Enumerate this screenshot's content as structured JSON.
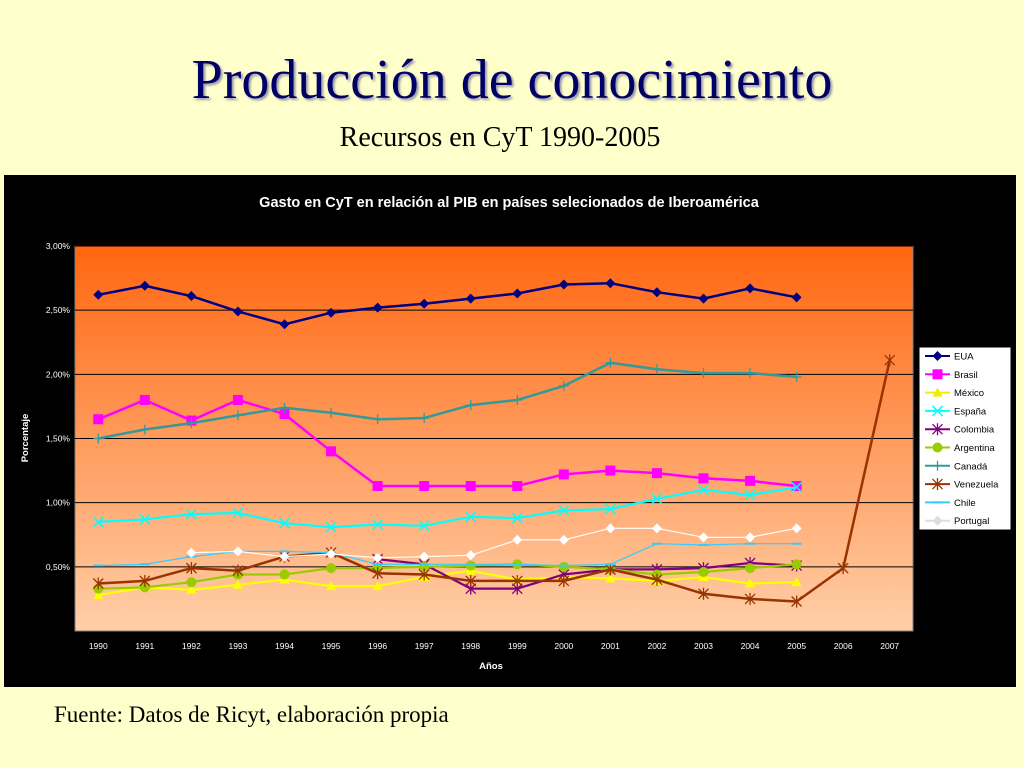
{
  "slide": {
    "title": "Producción de conocimiento",
    "subtitle": "Recursos en CyT 1990-2005",
    "source": "Fuente: Datos de Ricyt, elaboración propia"
  },
  "chart_data": {
    "type": "line",
    "title": "Gasto en CyT en relación al PIB en países selecionados de Iberoamérica",
    "xlabel": "Años",
    "ylabel": "Porcentaje",
    "ylim": [
      0,
      3.0
    ],
    "yticks": [
      0.5,
      1.0,
      1.5,
      2.0,
      2.5,
      3.0
    ],
    "ytick_labels": [
      "0,50%",
      "1,00%",
      "1,50%",
      "2,00%",
      "2,50%",
      "3,00%"
    ],
    "categories": [
      "1990",
      "1991",
      "1992",
      "1993",
      "1994",
      "1995",
      "1996",
      "1997",
      "1998",
      "1999",
      "2000",
      "2001",
      "2002",
      "2003",
      "2004",
      "2005",
      "2006",
      "2007"
    ],
    "grid": true,
    "legend_position": "right",
    "series": [
      {
        "name": "EUA",
        "color": "#000080",
        "marker": "diamond",
        "values": [
          2.62,
          2.69,
          2.61,
          2.49,
          2.39,
          2.48,
          2.52,
          2.55,
          2.59,
          2.63,
          2.7,
          2.71,
          2.64,
          2.59,
          2.67,
          2.6,
          null,
          null
        ]
      },
      {
        "name": "Brasil",
        "color": "#ff00ff",
        "marker": "square",
        "values": [
          1.65,
          1.8,
          1.64,
          1.8,
          1.69,
          1.4,
          1.13,
          1.13,
          1.13,
          1.13,
          1.22,
          1.25,
          1.23,
          1.19,
          1.17,
          1.13,
          null,
          null
        ]
      },
      {
        "name": "México",
        "color": "#ffff00",
        "marker": "triangle",
        "values": [
          0.28,
          0.34,
          0.32,
          0.36,
          0.4,
          0.35,
          0.35,
          0.42,
          0.47,
          0.4,
          0.42,
          0.41,
          0.39,
          0.42,
          0.37,
          0.38,
          null,
          null
        ]
      },
      {
        "name": "España",
        "color": "#00ffff",
        "marker": "x",
        "values": [
          0.85,
          0.87,
          0.91,
          0.92,
          0.84,
          0.81,
          0.83,
          0.82,
          0.89,
          0.88,
          0.94,
          0.95,
          1.03,
          1.1,
          1.06,
          1.12,
          null,
          null
        ]
      },
      {
        "name": "Colombia",
        "color": "#800080",
        "marker": "star",
        "values": [
          null,
          null,
          null,
          null,
          null,
          null,
          0.56,
          0.52,
          0.33,
          0.33,
          0.44,
          0.48,
          0.48,
          0.49,
          0.53,
          0.51,
          null,
          null
        ]
      },
      {
        "name": "Argentina",
        "color": "#99cc00",
        "marker": "circle",
        "values": [
          0.33,
          0.34,
          0.38,
          0.44,
          0.44,
          0.49,
          0.49,
          0.5,
          0.51,
          0.52,
          0.5,
          0.48,
          0.44,
          0.46,
          0.49,
          0.52,
          null,
          null
        ]
      },
      {
        "name": "Canadá",
        "color": "#339999",
        "marker": "plus",
        "values": [
          1.5,
          1.57,
          1.62,
          1.68,
          1.74,
          1.7,
          1.65,
          1.66,
          1.76,
          1.8,
          1.91,
          2.09,
          2.04,
          2.01,
          2.01,
          1.98,
          null,
          null
        ]
      },
      {
        "name": "Venezuela",
        "color": "#993300",
        "marker": "star",
        "values": [
          0.37,
          0.39,
          0.49,
          0.47,
          0.58,
          0.61,
          0.45,
          0.44,
          0.39,
          0.39,
          0.39,
          0.48,
          0.4,
          0.29,
          0.25,
          0.23,
          0.49,
          2.11
        ]
      },
      {
        "name": "Chile",
        "color": "#33ccff",
        "marker": "dash",
        "values": [
          0.51,
          0.52,
          0.58,
          0.62,
          0.62,
          0.61,
          0.52,
          0.52,
          0.52,
          0.52,
          0.51,
          0.52,
          0.68,
          0.67,
          0.68,
          0.68,
          null,
          null
        ]
      },
      {
        "name": "Portugal",
        "color": "#ffffff",
        "marker": "diamond",
        "values": [
          null,
          null,
          0.61,
          0.62,
          0.58,
          0.6,
          0.57,
          0.58,
          0.59,
          0.71,
          0.71,
          0.8,
          0.8,
          0.73,
          0.73,
          0.8,
          null,
          null
        ]
      }
    ]
  }
}
